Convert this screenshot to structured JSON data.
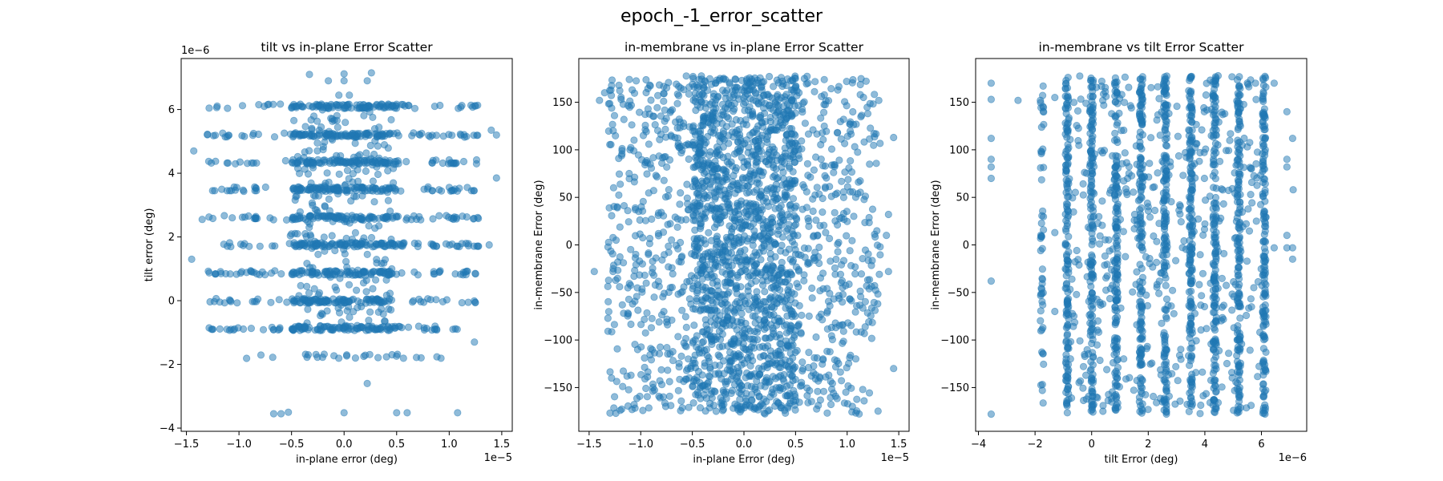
{
  "figure": {
    "title": "epoch_-1_error_scatter"
  },
  "colors": {
    "marker": "#1f77b4",
    "marker_opacity": 0.5,
    "axes": "#000000",
    "background": "#ffffff"
  },
  "chart_data": [
    {
      "type": "scatter",
      "title": "tilt vs in-plane Error Scatter",
      "xlabel": "in-plane error (deg)",
      "ylabel": "tilt error (deg)",
      "x_multiplier": "1e−5",
      "y_multiplier": "1e−6",
      "xlim": [
        -1.55,
        1.6
      ],
      "ylim": [
        -4.1,
        7.6
      ],
      "xticks": [
        -1.5,
        -1.0,
        -0.5,
        0.0,
        0.5,
        1.0,
        1.5
      ],
      "xtick_labels": [
        "−1.5",
        "−1.0",
        "−0.5",
        "0.0",
        "0.5",
        "1.0",
        "1.5"
      ],
      "yticks": [
        -4,
        -2,
        0,
        2,
        4,
        6
      ],
      "ytick_labels": [
        "−4",
        "−2",
        "0",
        "2",
        "4",
        "6"
      ],
      "grid": false,
      "y_levels": [
        -3.5,
        -2.6,
        -1.75,
        -0.87,
        0,
        0.87,
        1.75,
        2.6,
        3.5,
        4.35,
        5.2,
        6.1
      ],
      "x_core_range": [
        -0.5,
        0.5
      ],
      "x_full_range": [
        -1.45,
        1.45
      ],
      "outliers": [
        {
          "x": -0.33,
          "y": 7.1
        },
        {
          "x": 0.0,
          "y": 7.12
        },
        {
          "x": 0.26,
          "y": 7.15
        },
        {
          "x": -0.15,
          "y": 6.9
        },
        {
          "x": 0.22,
          "y": 6.9
        },
        {
          "x": -0.05,
          "y": 6.45
        },
        {
          "x": 0.0,
          "y": 6.9
        },
        {
          "x": 0.05,
          "y": 6.45
        },
        {
          "x": 0.22,
          "y": -2.6
        },
        {
          "x": -0.67,
          "y": -3.55
        },
        {
          "x": -0.6,
          "y": -3.55
        },
        {
          "x": -0.53,
          "y": -3.5
        },
        {
          "x": 0.0,
          "y": -3.52
        },
        {
          "x": 0.5,
          "y": -3.52
        },
        {
          "x": 0.6,
          "y": -3.52
        },
        {
          "x": 1.08,
          "y": -3.52
        },
        {
          "x": -1.45,
          "y": 1.3
        },
        {
          "x": -1.43,
          "y": 4.7
        },
        {
          "x": 1.45,
          "y": 3.85
        },
        {
          "x": 1.45,
          "y": 5.2
        },
        {
          "x": 1.4,
          "y": 5.35
        },
        {
          "x": -1.35,
          "y": 2.55
        },
        {
          "x": 1.38,
          "y": 1.75
        },
        {
          "x": 1.24,
          "y": -1.3
        }
      ]
    },
    {
      "type": "scatter",
      "title": "in-membrane vs in-plane Error Scatter",
      "xlabel": "in-plane Error (deg)",
      "ylabel": "in-membrane Error (deg)",
      "x_multiplier": "1e−5",
      "xlim": [
        -1.6,
        1.6
      ],
      "ylim": [
        -196,
        196
      ],
      "xticks": [
        -1.5,
        -1.0,
        -0.5,
        0.0,
        0.5,
        1.0,
        1.5
      ],
      "xtick_labels": [
        "−1.5",
        "−1.0",
        "−0.5",
        "0.0",
        "0.5",
        "1.0",
        "1.5"
      ],
      "yticks": [
        -150,
        -100,
        -50,
        0,
        50,
        100,
        150
      ],
      "ytick_labels": [
        "−150",
        "−100",
        "−50",
        "0",
        "50",
        "100",
        "150"
      ],
      "grid": false,
      "y_range": [
        -178,
        178
      ],
      "x_core_range": [
        -0.5,
        0.5
      ],
      "x_full_range": [
        -1.45,
        1.45
      ],
      "outliers": [
        {
          "x": -1.45,
          "y": -28
        },
        {
          "x": -1.4,
          "y": 152
        },
        {
          "x": -1.35,
          "y": 160
        },
        {
          "x": 1.45,
          "y": 113
        },
        {
          "x": 1.45,
          "y": -130
        },
        {
          "x": 1.4,
          "y": 32
        },
        {
          "x": 1.4,
          "y": -28
        },
        {
          "x": 1.38,
          "y": 10
        }
      ]
    },
    {
      "type": "scatter",
      "title": "in-membrane vs tilt Error Scatter",
      "xlabel": "tilt Error (deg)",
      "ylabel": "in-membrane Error (deg)",
      "x_multiplier": "1e−6",
      "xlim": [
        -4.1,
        7.6
      ],
      "ylim": [
        -196,
        196
      ],
      "xticks": [
        -4,
        -2,
        0,
        2,
        4,
        6
      ],
      "xtick_labels": [
        "−4",
        "−2",
        "0",
        "2",
        "4",
        "6"
      ],
      "yticks": [
        -150,
        -100,
        -50,
        0,
        50,
        100,
        150
      ],
      "ytick_labels": [
        "−150",
        "−100",
        "−50",
        "0",
        "50",
        "100",
        "150"
      ],
      "grid": false,
      "x_levels": [
        -1.75,
        -0.87,
        0,
        0.87,
        1.75,
        2.6,
        3.5,
        4.35,
        5.2,
        6.1
      ],
      "y_range": [
        -178,
        178
      ],
      "outliers": [
        {
          "x": -3.55,
          "y": 170
        },
        {
          "x": -3.55,
          "y": 153
        },
        {
          "x": -3.55,
          "y": 112
        },
        {
          "x": -3.55,
          "y": 90
        },
        {
          "x": -3.55,
          "y": 82
        },
        {
          "x": -3.55,
          "y": 70
        },
        {
          "x": -3.55,
          "y": -38
        },
        {
          "x": -3.55,
          "y": -178
        },
        {
          "x": -2.6,
          "y": 152
        },
        {
          "x": -1.3,
          "y": 13
        },
        {
          "x": -1.3,
          "y": -70
        },
        {
          "x": -1.3,
          "y": 155
        },
        {
          "x": 6.9,
          "y": 140
        },
        {
          "x": 6.9,
          "y": 90
        },
        {
          "x": 6.9,
          "y": 82
        },
        {
          "x": 6.9,
          "y": 10
        },
        {
          "x": 6.9,
          "y": -3
        },
        {
          "x": 7.1,
          "y": 112
        },
        {
          "x": 7.1,
          "y": -3
        },
        {
          "x": 7.1,
          "y": -15
        },
        {
          "x": 6.45,
          "y": 170
        },
        {
          "x": 6.45,
          "y": -3
        },
        {
          "x": 7.12,
          "y": 58
        }
      ]
    }
  ]
}
